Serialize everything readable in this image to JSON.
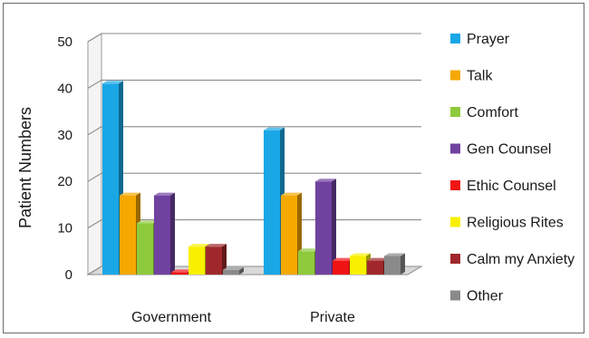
{
  "chart_data": {
    "type": "bar",
    "ylabel": "Patient Numbers",
    "xlabel": "",
    "ylim": [
      0,
      50
    ],
    "yticks": [
      0,
      10,
      20,
      30,
      40,
      50
    ],
    "grid": true,
    "legend_position": "right",
    "categories": [
      "Government",
      "Private"
    ],
    "series": [
      {
        "name": "Prayer",
        "color": "#1aa7e6",
        "values": [
          41,
          31
        ]
      },
      {
        "name": "Talk",
        "color": "#f5a800",
        "values": [
          17,
          17
        ]
      },
      {
        "name": "Comfort",
        "color": "#8fca3c",
        "values": [
          11,
          5
        ]
      },
      {
        "name": "Gen Counsel",
        "color": "#7042a0",
        "values": [
          17,
          20
        ]
      },
      {
        "name": "Ethic Counsel",
        "color": "#f01414",
        "values": [
          0.5,
          3
        ]
      },
      {
        "name": "Religious Rites",
        "color": "#f8f000",
        "values": [
          6,
          4
        ]
      },
      {
        "name": "Calm my Anxiety",
        "color": "#a0282c",
        "values": [
          6,
          3
        ]
      },
      {
        "name": "Other",
        "color": "#8a8a8a",
        "values": [
          1,
          4
        ]
      }
    ]
  }
}
